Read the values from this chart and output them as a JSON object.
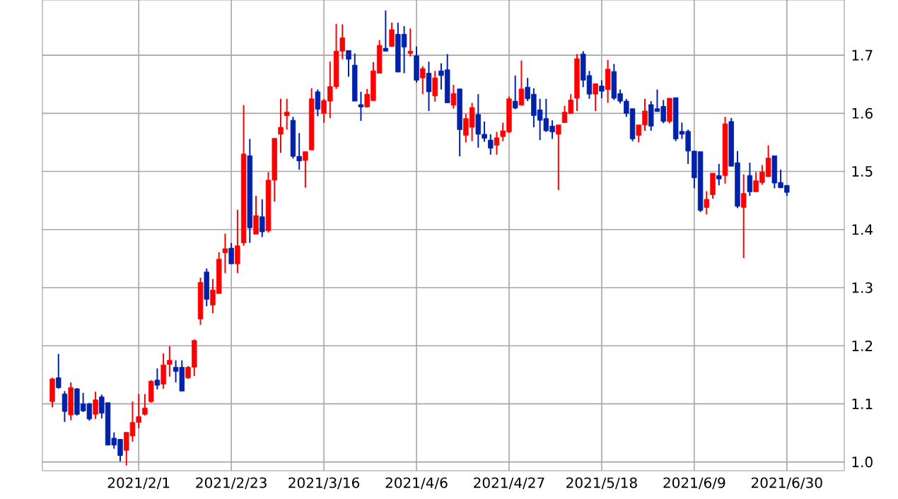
{
  "chart_data": {
    "type": "candlestick",
    "categories": [
      null,
      null,
      null,
      null,
      null,
      null,
      null,
      null,
      null,
      null,
      null,
      null,
      null,
      null,
      "2021/2/1",
      null,
      null,
      null,
      null,
      null,
      null,
      null,
      null,
      null,
      null,
      null,
      null,
      null,
      null,
      "2021/2/23",
      null,
      null,
      null,
      null,
      null,
      null,
      null,
      null,
      null,
      null,
      null,
      null,
      null,
      null,
      "2021/3/16",
      null,
      null,
      null,
      null,
      null,
      null,
      null,
      null,
      null,
      null,
      null,
      null,
      null,
      null,
      "2021/4/6",
      null,
      null,
      null,
      null,
      null,
      null,
      null,
      null,
      null,
      null,
      null,
      null,
      null,
      null,
      "2021/4/27",
      null,
      null,
      null,
      null,
      null,
      null,
      null,
      null,
      null,
      null,
      null,
      null,
      null,
      null,
      "2021/5/18",
      null,
      null,
      null,
      null,
      null,
      null,
      null,
      null,
      null,
      null,
      null,
      null,
      null,
      null,
      "2021/6/9",
      null,
      null,
      null,
      null,
      null,
      null,
      null,
      null,
      null,
      null,
      null,
      null,
      null,
      null,
      "2021/6/30"
    ],
    "ohlc": [
      [
        1.104,
        1.145,
        1.094,
        1.143
      ],
      [
        1.145,
        1.186,
        1.126,
        1.128
      ],
      [
        1.117,
        1.122,
        1.069,
        1.087
      ],
      [
        1.081,
        1.137,
        1.072,
        1.128
      ],
      [
        1.126,
        1.127,
        1.08,
        1.082
      ],
      [
        1.1,
        1.119,
        1.086,
        1.088
      ],
      [
        1.1,
        1.102,
        1.071,
        1.074
      ],
      [
        1.082,
        1.121,
        1.074,
        1.107
      ],
      [
        1.112,
        1.116,
        1.075,
        1.084
      ],
      [
        1.102,
        1.102,
        1.029,
        1.029
      ],
      [
        1.041,
        1.051,
        1.023,
        1.029
      ],
      [
        1.039,
        1.039,
        1.001,
        1.011
      ],
      [
        1.02,
        1.051,
        0.994,
        1.051
      ],
      [
        1.045,
        1.104,
        1.035,
        1.068
      ],
      [
        1.068,
        1.117,
        1.058,
        1.078
      ],
      [
        1.082,
        1.117,
        1.08,
        1.093
      ],
      [
        1.104,
        1.141,
        1.102,
        1.139
      ],
      [
        1.141,
        1.161,
        1.125,
        1.132
      ],
      [
        1.134,
        1.187,
        1.126,
        1.167
      ],
      [
        1.168,
        1.199,
        1.147,
        1.175
      ],
      [
        1.163,
        1.175,
        1.137,
        1.156
      ],
      [
        1.163,
        1.175,
        1.122,
        1.122
      ],
      [
        1.145,
        1.165,
        1.143,
        1.163
      ],
      [
        1.163,
        1.211,
        1.148,
        1.209
      ],
      [
        1.246,
        1.317,
        1.236,
        1.309
      ],
      [
        1.327,
        1.333,
        1.268,
        1.28
      ],
      [
        1.27,
        1.315,
        1.256,
        1.296
      ],
      [
        1.29,
        1.361,
        1.29,
        1.349
      ],
      [
        1.36,
        1.393,
        1.325,
        1.367
      ],
      [
        1.368,
        1.377,
        1.341,
        1.341
      ],
      [
        1.341,
        1.434,
        1.325,
        1.372
      ],
      [
        1.377,
        1.614,
        1.372,
        1.53
      ],
      [
        1.527,
        1.556,
        1.377,
        1.403
      ],
      [
        1.392,
        1.458,
        1.392,
        1.424
      ],
      [
        1.422,
        1.452,
        1.387,
        1.396
      ],
      [
        1.398,
        1.499,
        1.395,
        1.485
      ],
      [
        1.485,
        1.557,
        1.448,
        1.557
      ],
      [
        1.564,
        1.625,
        1.532,
        1.576
      ],
      [
        1.596,
        1.625,
        1.572,
        1.602
      ],
      [
        1.588,
        1.594,
        1.522,
        1.526
      ],
      [
        1.526,
        1.566,
        1.503,
        1.518
      ],
      [
        1.519,
        1.534,
        1.472,
        1.534
      ],
      [
        1.537,
        1.643,
        1.537,
        1.625
      ],
      [
        1.637,
        1.641,
        1.595,
        1.607
      ],
      [
        1.6,
        1.625,
        1.584,
        1.622
      ],
      [
        1.621,
        1.689,
        1.592,
        1.646
      ],
      [
        1.646,
        1.754,
        1.642,
        1.707
      ],
      [
        1.707,
        1.753,
        1.693,
        1.73
      ],
      [
        1.708,
        1.708,
        1.663,
        1.693
      ],
      [
        1.683,
        1.703,
        1.621,
        1.621
      ],
      [
        1.615,
        1.637,
        1.587,
        1.611
      ],
      [
        1.611,
        1.642,
        1.61,
        1.633
      ],
      [
        1.622,
        1.688,
        1.622,
        1.673
      ],
      [
        1.669,
        1.726,
        1.669,
        1.717
      ],
      [
        1.712,
        1.777,
        1.707,
        1.707
      ],
      [
        1.715,
        1.756,
        1.715,
        1.744
      ],
      [
        1.736,
        1.756,
        1.671,
        1.671
      ],
      [
        1.736,
        1.75,
        1.669,
        1.714
      ],
      [
        1.703,
        1.746,
        1.698,
        1.707
      ],
      [
        1.699,
        1.715,
        1.653,
        1.657
      ],
      [
        1.661,
        1.681,
        1.633,
        1.677
      ],
      [
        1.669,
        1.689,
        1.604,
        1.637
      ],
      [
        1.63,
        1.673,
        1.62,
        1.661
      ],
      [
        1.673,
        1.686,
        1.641,
        1.665
      ],
      [
        1.675,
        1.702,
        1.618,
        1.618
      ],
      [
        1.614,
        1.649,
        1.608,
        1.634
      ],
      [
        1.642,
        1.642,
        1.526,
        1.572
      ],
      [
        1.562,
        1.599,
        1.55,
        1.591
      ],
      [
        1.576,
        1.618,
        1.552,
        1.61
      ],
      [
        1.598,
        1.633,
        1.541,
        1.564
      ],
      [
        1.564,
        1.586,
        1.551,
        1.557
      ],
      [
        1.554,
        1.564,
        1.529,
        1.54
      ],
      [
        1.545,
        1.568,
        1.529,
        1.558
      ],
      [
        1.56,
        1.584,
        1.552,
        1.57
      ],
      [
        1.568,
        1.629,
        1.566,
        1.625
      ],
      [
        1.621,
        1.665,
        1.607,
        1.609
      ],
      [
        1.614,
        1.691,
        1.614,
        1.642
      ],
      [
        1.645,
        1.661,
        1.621,
        1.625
      ],
      [
        1.633,
        1.643,
        1.576,
        1.596
      ],
      [
        1.606,
        1.625,
        1.554,
        1.588
      ],
      [
        1.591,
        1.625,
        1.568,
        1.57
      ],
      [
        1.578,
        1.588,
        1.556,
        1.568
      ],
      [
        1.564,
        1.58,
        1.468,
        1.58
      ],
      [
        1.584,
        1.613,
        1.584,
        1.602
      ],
      [
        1.6,
        1.633,
        1.6,
        1.623
      ],
      [
        1.626,
        1.702,
        1.604,
        1.694
      ],
      [
        1.702,
        1.707,
        1.645,
        1.657
      ],
      [
        1.665,
        1.673,
        1.625,
        1.633
      ],
      [
        1.633,
        1.651,
        1.604,
        1.651
      ],
      [
        1.647,
        1.657,
        1.626,
        1.638
      ],
      [
        1.641,
        1.692,
        1.618,
        1.676
      ],
      [
        1.672,
        1.685,
        1.623,
        1.626
      ],
      [
        1.634,
        1.641,
        1.617,
        1.621
      ],
      [
        1.621,
        1.625,
        1.594,
        1.6
      ],
      [
        1.608,
        1.608,
        1.552,
        1.556
      ],
      [
        1.562,
        1.58,
        1.55,
        1.58
      ],
      [
        1.58,
        1.625,
        1.57,
        1.604
      ],
      [
        1.615,
        1.621,
        1.57,
        1.578
      ],
      [
        1.608,
        1.641,
        1.603,
        1.603
      ],
      [
        1.612,
        1.623,
        1.583,
        1.586
      ],
      [
        1.586,
        1.626,
        1.583,
        1.626
      ],
      [
        1.627,
        1.627,
        1.552,
        1.556
      ],
      [
        1.569,
        1.584,
        1.556,
        1.564
      ],
      [
        1.569,
        1.572,
        1.513,
        1.535
      ],
      [
        1.535,
        1.535,
        1.471,
        1.489
      ],
      [
        1.534,
        1.534,
        1.43,
        1.433
      ],
      [
        1.438,
        1.466,
        1.426,
        1.452
      ],
      [
        1.46,
        1.497,
        1.453,
        1.497
      ],
      [
        1.493,
        1.513,
        1.476,
        1.487
      ],
      [
        1.493,
        1.594,
        1.479,
        1.582
      ],
      [
        1.586,
        1.592,
        1.509,
        1.509
      ],
      [
        1.515,
        1.535,
        1.437,
        1.44
      ],
      [
        1.438,
        1.495,
        1.351,
        1.462
      ],
      [
        1.493,
        1.515,
        1.458,
        1.465
      ],
      [
        1.465,
        1.499,
        1.465,
        1.484
      ],
      [
        1.481,
        1.511,
        1.477,
        1.499
      ],
      [
        1.491,
        1.545,
        1.491,
        1.523
      ],
      [
        1.527,
        1.527,
        1.471,
        1.48
      ],
      [
        1.481,
        1.503,
        1.471,
        1.472
      ],
      [
        1.476,
        1.476,
        1.458,
        1.464
      ]
    ],
    "colors": [
      "#ff0000",
      "#0022aa",
      "#0022aa",
      "#ff0000",
      "#0022aa",
      "#0022aa",
      "#0022aa",
      "#ff0000",
      "#0022aa",
      "#0022aa",
      "#0022aa",
      "#0022aa",
      "#ff0000",
      "#ff0000",
      "#ff0000",
      "#ff0000",
      "#ff0000",
      "#0022aa",
      "#ff0000",
      "#ff0000",
      "#0022aa",
      "#0022aa",
      "#ff0000",
      "#ff0000",
      "#ff0000",
      "#0022aa",
      "#ff0000",
      "#ff0000",
      "#ff0000",
      "#0022aa",
      "#ff0000",
      "#ff0000",
      "#0022aa",
      "#ff0000",
      "#0022aa",
      "#ff0000",
      "#ff0000",
      "#ff0000",
      "#ff0000",
      "#0022aa",
      "#0022aa",
      "#ff0000",
      "#ff0000",
      "#0022aa",
      "#ff0000",
      "#ff0000",
      "#ff0000",
      "#ff0000",
      "#0022aa",
      "#0022aa",
      "#0022aa",
      "#ff0000",
      "#ff0000",
      "#ff0000",
      "#0022aa",
      "#ff0000",
      "#0022aa",
      "#0022aa",
      "#ff0000",
      "#0022aa",
      "#ff0000",
      "#0022aa",
      "#ff0000",
      "#0022aa",
      "#0022aa",
      "#ff0000",
      "#0022aa",
      "#ff0000",
      "#ff0000",
      "#0022aa",
      "#0022aa",
      "#0022aa",
      "#ff0000",
      "#ff0000",
      "#ff0000",
      "#0022aa",
      "#ff0000",
      "#0022aa",
      "#0022aa",
      "#0022aa",
      "#0022aa",
      "#0022aa",
      "#ff0000",
      "#ff0000",
      "#ff0000",
      "#ff0000",
      "#0022aa",
      "#0022aa",
      "#ff0000",
      "#0022aa",
      "#ff0000",
      "#0022aa",
      "#0022aa",
      "#0022aa",
      "#0022aa",
      "#ff0000",
      "#ff0000",
      "#0022aa",
      "#0022aa",
      "#0022aa",
      "#ff0000",
      "#0022aa",
      "#0022aa",
      "#0022aa",
      "#0022aa",
      "#0022aa",
      "#ff0000",
      "#ff0000",
      "#0022aa",
      "#ff0000",
      "#0022aa",
      "#0022aa",
      "#ff0000",
      "#0022aa",
      "#ff0000",
      "#ff0000",
      "#ff0000",
      "#0022aa",
      "#0022aa",
      "#0022aa"
    ],
    "ylim": [
      0.985,
      1.795
    ],
    "yticks": [
      {
        "value": 1.0,
        "label": "1.0"
      },
      1.1,
      1.2,
      1.3,
      1.4,
      1.5,
      1.6,
      1.7
    ],
    "grid": true
  }
}
